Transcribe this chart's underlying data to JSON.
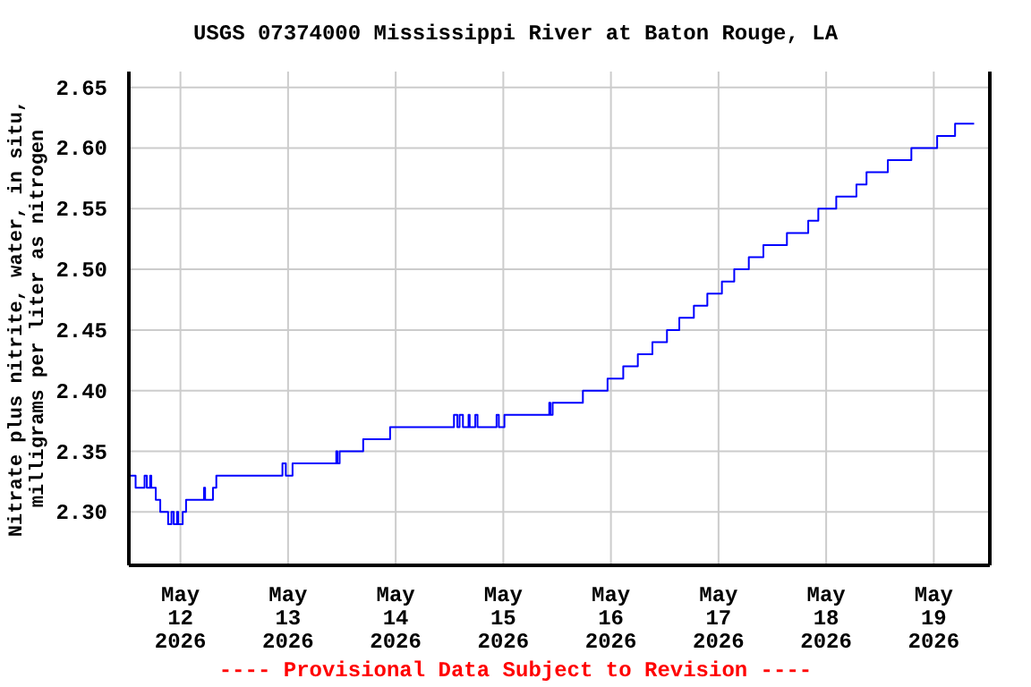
{
  "chart_data": {
    "type": "step",
    "title": "USGS 07374000 Mississippi River at Baton Rouge, LA",
    "ylabel": "Nitrate plus nitrite, water, in situ,\nmilligrams per liter as nitrogen",
    "annotations": [
      "---- Provisional Data Subject to Revision ----"
    ],
    "x": [
      "2026-05-11T12:30",
      "2026-05-11T14:00",
      "2026-05-11T16:00",
      "2026-05-11T16:30",
      "2026-05-11T17:15",
      "2026-05-11T17:30",
      "2026-05-11T18:30",
      "2026-05-11T19:30",
      "2026-05-11T21:15",
      "2026-05-11T22:00",
      "2026-05-11T22:30",
      "2026-05-11T23:15",
      "2026-05-11T23:30",
      "2026-05-12T00:30",
      "2026-05-12T01:15",
      "2026-05-12T05:15",
      "2026-05-12T05:30",
      "2026-05-12T07:15",
      "2026-05-12T08:00",
      "2026-05-12T22:45",
      "2026-05-12T23:30",
      "2026-05-13T01:00",
      "2026-05-13T10:45",
      "2026-05-13T11:00",
      "2026-05-13T11:30",
      "2026-05-13T16:45",
      "2026-05-13T22:45",
      "2026-05-14T13:00",
      "2026-05-14T13:45",
      "2026-05-14T14:15",
      "2026-05-14T15:00",
      "2026-05-14T16:15",
      "2026-05-14T16:30",
      "2026-05-14T17:45",
      "2026-05-14T18:15",
      "2026-05-14T22:30",
      "2026-05-14T23:00",
      "2026-05-15T00:15",
      "2026-05-15T10:15",
      "2026-05-15T10:30",
      "2026-05-15T11:00",
      "2026-05-15T17:45",
      "2026-05-15T23:15",
      "2026-05-16T02:45",
      "2026-05-16T06:00",
      "2026-05-16T09:15",
      "2026-05-16T12:30",
      "2026-05-16T15:15",
      "2026-05-16T18:30",
      "2026-05-16T21:30",
      "2026-05-17T00:45",
      "2026-05-17T03:30",
      "2026-05-17T06:45",
      "2026-05-17T10:00",
      "2026-05-17T15:15",
      "2026-05-17T20:00",
      "2026-05-17T22:15",
      "2026-05-18T02:15",
      "2026-05-18T06:45",
      "2026-05-18T09:00",
      "2026-05-18T13:45",
      "2026-05-18T19:00",
      "2026-05-19T00:45",
      "2026-05-19T04:45",
      "2026-05-19T09:00"
    ],
    "series": [
      {
        "color": "#0000ff",
        "values": [
          2.33,
          2.32,
          2.33,
          2.32,
          2.33,
          2.32,
          2.31,
          2.3,
          2.29,
          2.3,
          2.29,
          2.3,
          2.29,
          2.3,
          2.31,
          2.32,
          2.31,
          2.32,
          2.33,
          2.34,
          2.33,
          2.34,
          2.35,
          2.34,
          2.35,
          2.36,
          2.37,
          2.38,
          2.37,
          2.38,
          2.37,
          2.38,
          2.37,
          2.38,
          2.37,
          2.38,
          2.37,
          2.38,
          2.39,
          2.38,
          2.39,
          2.4,
          2.41,
          2.42,
          2.43,
          2.44,
          2.45,
          2.46,
          2.47,
          2.48,
          2.49,
          2.5,
          2.51,
          2.52,
          2.53,
          2.54,
          2.55,
          2.56,
          2.57,
          2.58,
          2.59,
          2.6,
          2.61,
          2.62,
          2.62
        ]
      }
    ],
    "xlim": [
      "2026-05-11T12:30",
      "2026-05-19T12:30"
    ],
    "xticks": [
      {
        "value": "2026-05-12",
        "label": "May 12 2026"
      },
      {
        "value": "2026-05-13",
        "label": "May 13 2026"
      },
      {
        "value": "2026-05-14",
        "label": "May 14 2026"
      },
      {
        "value": "2026-05-15",
        "label": "May 15 2026"
      },
      {
        "value": "2026-05-16",
        "label": "May 16 2026"
      },
      {
        "value": "2026-05-17",
        "label": "May 17 2026"
      },
      {
        "value": "2026-05-18",
        "label": "May 18 2026"
      },
      {
        "value": "2026-05-19",
        "label": "May 19 2026"
      }
    ],
    "ylim": [
      2.256,
      2.663
    ],
    "yticks": [
      {
        "value": 2.3,
        "label": "2.30"
      },
      {
        "value": 2.35,
        "label": "2.35"
      },
      {
        "value": 2.4,
        "label": "2.40"
      },
      {
        "value": 2.45,
        "label": "2.45"
      },
      {
        "value": 2.5,
        "label": "2.50"
      },
      {
        "value": 2.55,
        "label": "2.55"
      },
      {
        "value": 2.6,
        "label": "2.60"
      },
      {
        "value": 2.65,
        "label": "2.65"
      }
    ],
    "grid": true,
    "legend": false,
    "marker": "none",
    "line_style": "solid"
  }
}
